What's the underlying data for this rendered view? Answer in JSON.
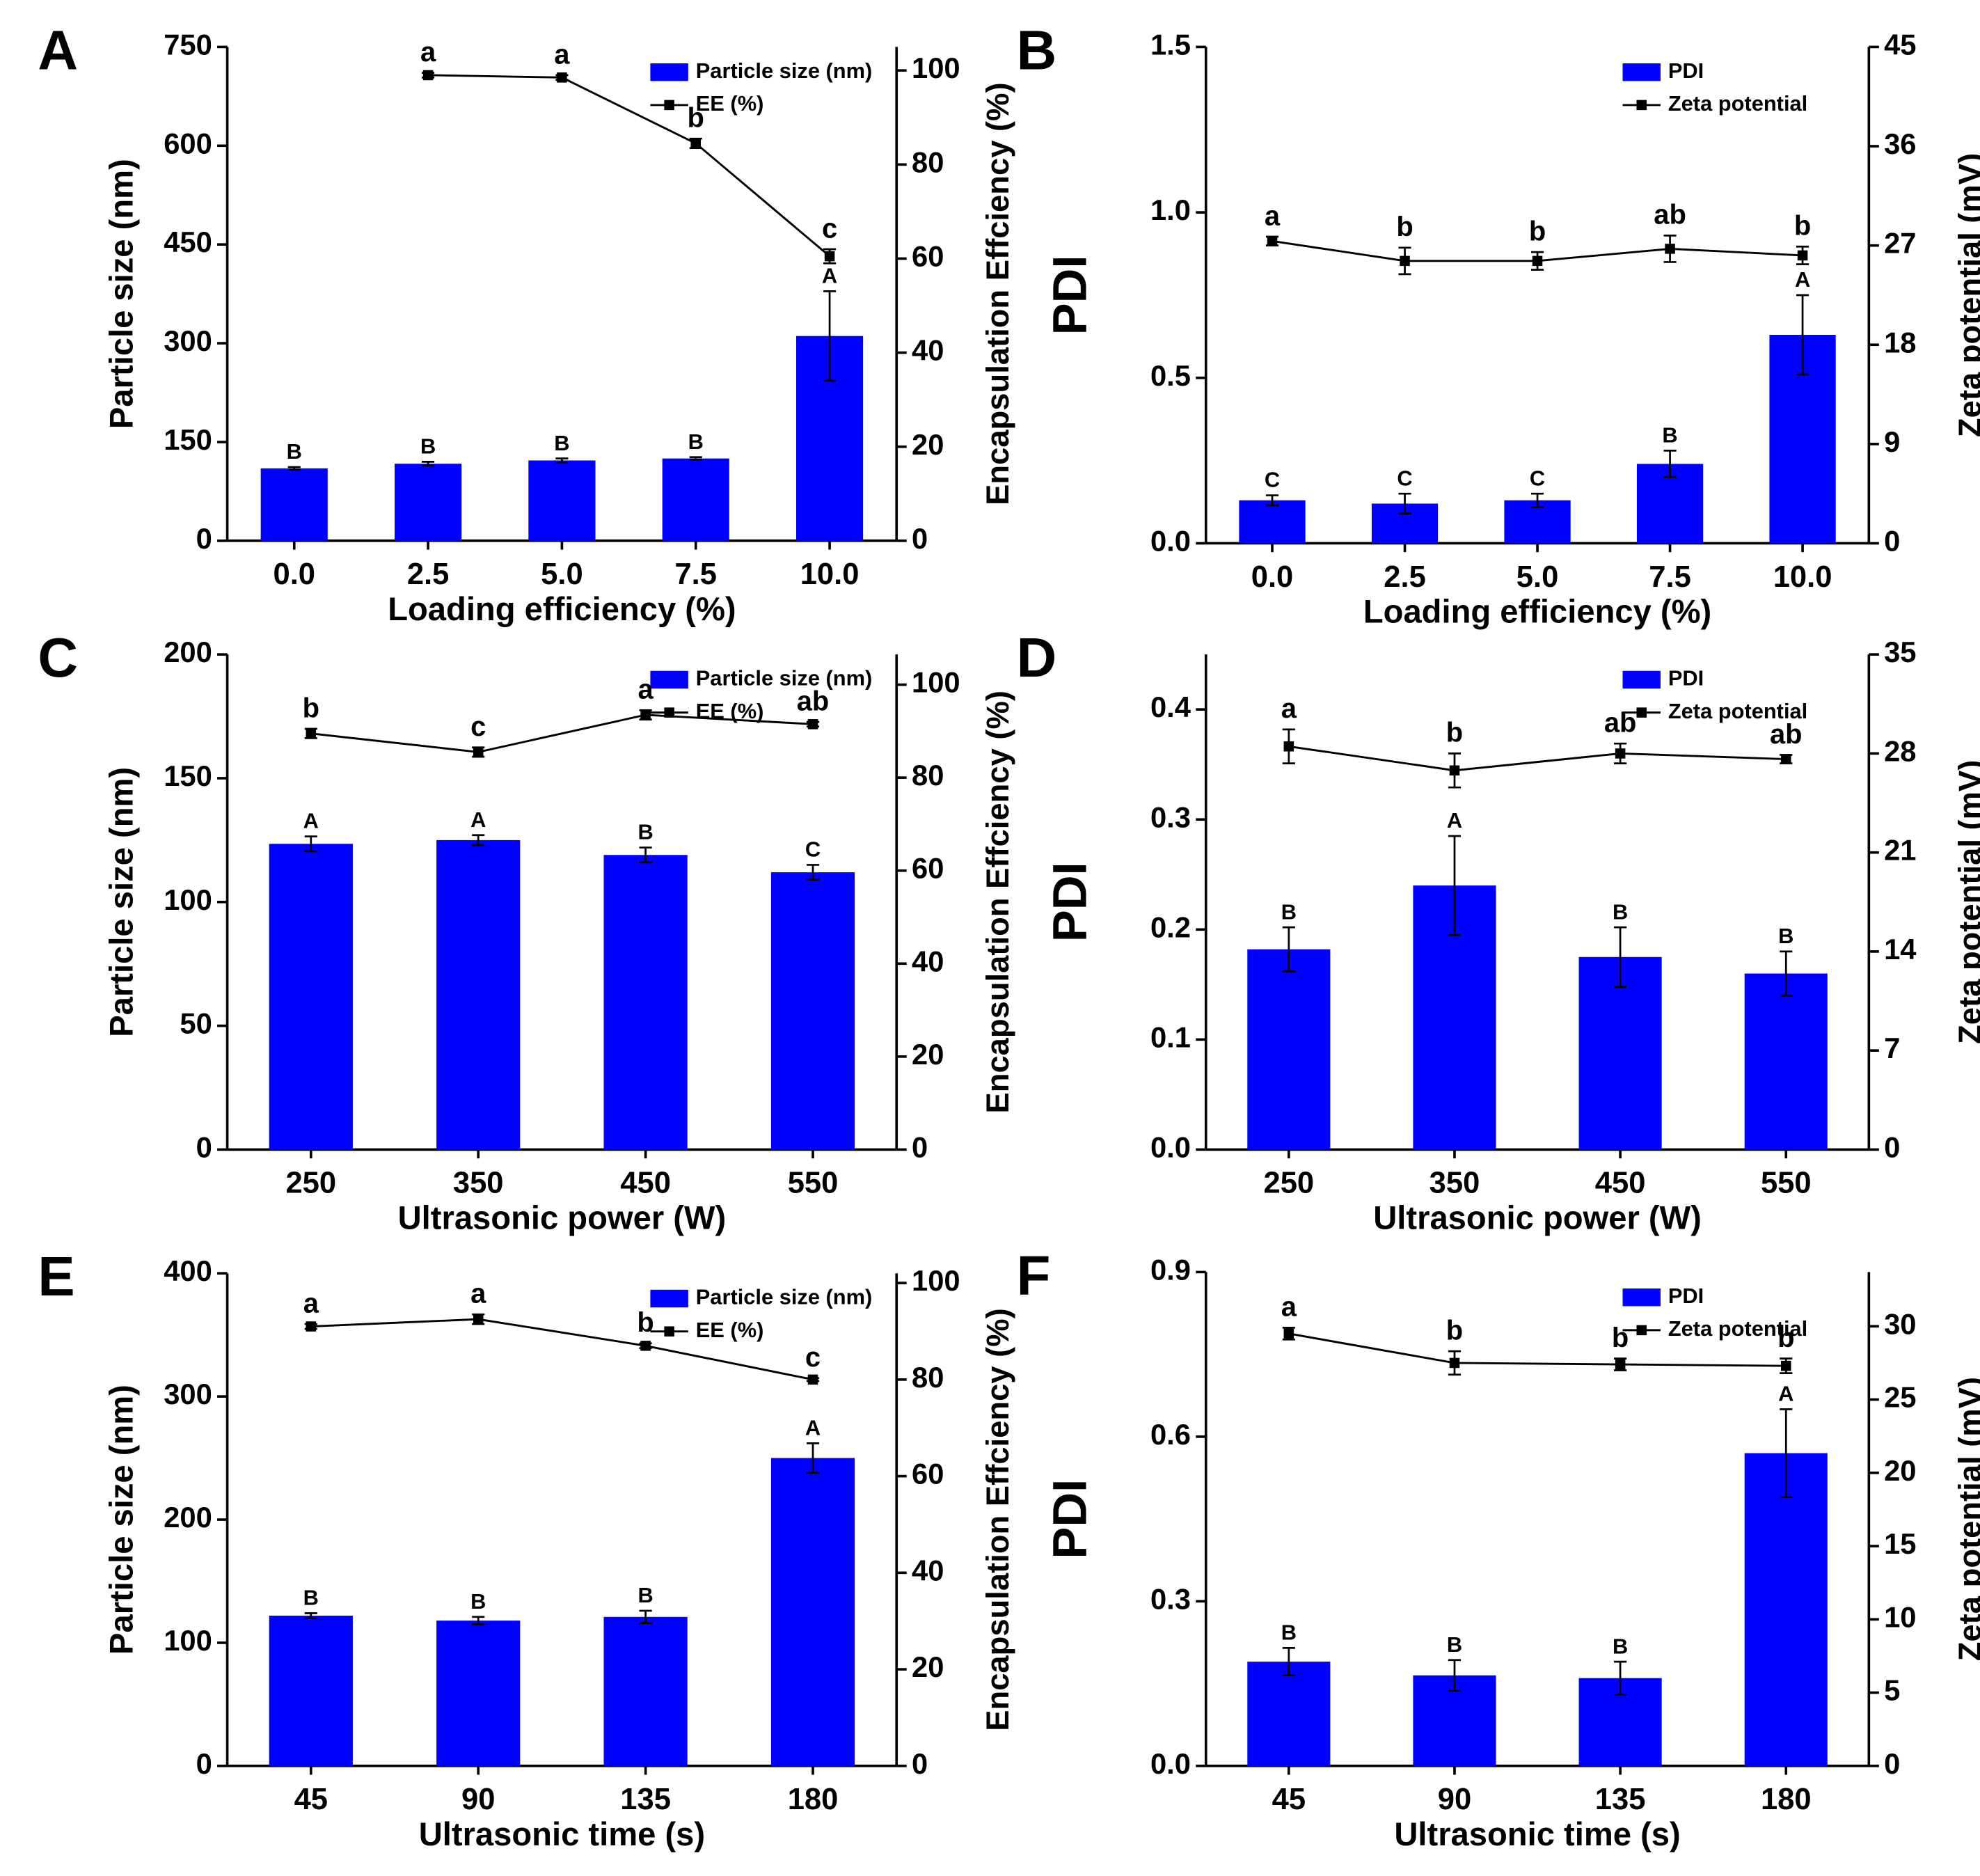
{
  "chart_data": [
    {
      "type": "bar",
      "panel": "A",
      "xlabel": "Loading efficiency (%)",
      "ylabel": "Particle size (nm)",
      "y2label": "Encapsulation Effciency (%)",
      "categories": [
        "0.0",
        "2.5",
        "5.0",
        "7.5",
        "10.0"
      ],
      "series": [
        {
          "name": "Particle size (nm)",
          "color": "#0000ff",
          "values": [
            110,
            117,
            122,
            125,
            311
          ],
          "errors": [
            2,
            3,
            3,
            2,
            68
          ],
          "letters": [
            "B",
            "B",
            "B",
            "B",
            "A"
          ]
        },
        {
          "name": "EE (%)",
          "color": "#000000",
          "axis": "y2",
          "type": "line",
          "values": [
            null,
            99,
            98.5,
            84.5,
            60.5
          ],
          "errors": [
            null,
            0.5,
            0.5,
            1,
            1.5
          ],
          "letters": [
            null,
            "a",
            "a",
            "b",
            "c"
          ]
        }
      ],
      "ylim": [
        0,
        750
      ],
      "yticks": [
        0,
        150,
        300,
        450,
        600,
        750
      ],
      "y2lim": [
        0,
        105
      ],
      "y2ticks": [
        0,
        20,
        40,
        60,
        80,
        100
      ],
      "legend": "upper right"
    },
    {
      "type": "bar",
      "panel": "B",
      "xlabel": "Loading efficiency (%)",
      "ylabel": "PDI",
      "y2label": "Zeta potential (mV)",
      "categories": [
        "0.0",
        "2.5",
        "5.0",
        "7.5",
        "10.0"
      ],
      "series": [
        {
          "name": "PDI",
          "color": "#0000ff",
          "values": [
            0.13,
            0.12,
            0.13,
            0.24,
            0.63
          ],
          "errors": [
            0.015,
            0.03,
            0.02,
            0.04,
            0.12
          ],
          "letters": [
            "C",
            "C",
            "C",
            "B",
            "A"
          ]
        },
        {
          "name": "Zeta potential",
          "color": "#000000",
          "axis": "y2",
          "type": "line",
          "values": [
            27.4,
            25.6,
            25.6,
            26.7,
            26.1
          ],
          "errors": [
            0.4,
            1.2,
            0.8,
            1.2,
            0.8
          ],
          "letters": [
            "a",
            "b",
            "b",
            "ab",
            "b"
          ]
        }
      ],
      "ylim": [
        0,
        1.5
      ],
      "yticks": [
        {
          "value": 0,
          "label": "0.0"
        },
        {
          "value": 0.5,
          "label": "0.5"
        },
        {
          "value": 1,
          "label": "1.0"
        },
        {
          "value": 1.5,
          "label": "1.5"
        }
      ],
      "y2lim": [
        0,
        45
      ],
      "y2ticks": [
        0,
        9,
        18,
        27,
        36,
        45
      ],
      "legend": "upper right"
    },
    {
      "type": "bar",
      "panel": "C",
      "xlabel": "Ultrasonic power (W)",
      "ylabel": "Particle size (nm)",
      "y2label": "Encapsulation Effciency (%)",
      "categories": [
        "250",
        "350",
        "450",
        "550"
      ],
      "series": [
        {
          "name": "Particle size (nm)",
          "color": "#0000ff",
          "values": [
            123.5,
            125,
            119,
            112
          ],
          "errors": [
            3,
            2,
            3,
            3
          ],
          "letters": [
            "A",
            "A",
            "B",
            "C"
          ]
        },
        {
          "name": "EE (%)",
          "color": "#000000",
          "axis": "y2",
          "type": "line",
          "values": [
            89.5,
            85.5,
            93.5,
            91.5
          ],
          "errors": [
            1,
            1,
            1,
            0.5
          ],
          "letters": [
            "b",
            "c",
            "a",
            "ab"
          ]
        }
      ],
      "ylim": [
        0,
        200
      ],
      "yticks": [
        0,
        50,
        100,
        150,
        200
      ],
      "y2lim": [
        0,
        106.5
      ],
      "y2ticks": [
        0,
        20,
        40,
        60,
        80,
        100
      ],
      "legend": "upper right"
    },
    {
      "type": "bar",
      "panel": "D",
      "xlabel": "Ultrasonic power (W)",
      "ylabel": "PDI",
      "y2label": "Zeta potential (mV)",
      "categories": [
        "250",
        "350",
        "450",
        "550"
      ],
      "series": [
        {
          "name": "PDI",
          "color": "#0000ff",
          "values": [
            0.182,
            0.24,
            0.175,
            0.16
          ],
          "errors": [
            0.02,
            0.045,
            0.027,
            0.02
          ],
          "letters": [
            "B",
            "A",
            "B",
            "B"
          ]
        },
        {
          "name": "Zeta potential",
          "color": "#000000",
          "axis": "y2",
          "type": "line",
          "values": [
            28.5,
            26.8,
            28.0,
            27.6
          ],
          "errors": [
            1.2,
            1.2,
            0.7,
            0.3
          ],
          "letters": [
            "a",
            "b",
            "ab",
            "ab"
          ]
        }
      ],
      "ylim": [
        0,
        0.45
      ],
      "yticks": [
        {
          "value": 0,
          "label": "0.0"
        },
        0.1,
        0.2,
        0.3,
        0.4
      ],
      "y2lim": [
        0,
        35
      ],
      "y2ticks": [
        0,
        7,
        14,
        21,
        28,
        35
      ],
      "legend": "upper right"
    },
    {
      "type": "bar",
      "panel": "E",
      "xlabel": "Ultrasonic time (s)",
      "ylabel": "Particle size (nm)",
      "y2label": "Encapsulation Effciency (%)",
      "categories": [
        "45",
        "90",
        "135",
        "180"
      ],
      "series": [
        {
          "name": "Particle size (nm)",
          "color": "#0000ff",
          "values": [
            122,
            118,
            121,
            250
          ],
          "errors": [
            2,
            3,
            5,
            12
          ],
          "letters": [
            "B",
            "B",
            "B",
            "A"
          ]
        },
        {
          "name": "EE (%)",
          "color": "#000000",
          "axis": "y2",
          "type": "line",
          "values": [
            91,
            92.5,
            87,
            80
          ],
          "errors": [
            0.5,
            1,
            0.5,
            0.3
          ],
          "letters": [
            "a",
            "a",
            "b",
            "c"
          ]
        }
      ],
      "ylim": [
        0,
        400
      ],
      "yticks": [
        0,
        100,
        200,
        300,
        400
      ],
      "y2lim": [
        0,
        102
      ],
      "y2ticks": [
        0,
        20,
        40,
        60,
        80,
        100
      ],
      "legend": "upper right"
    },
    {
      "type": "bar",
      "panel": "F",
      "xlabel": "Ultrasonic time (s)",
      "ylabel": "PDI",
      "y2label": "Zeta potential (mV)",
      "categories": [
        "45",
        "90",
        "135",
        "180"
      ],
      "series": [
        {
          "name": "PDI",
          "color": "#0000ff",
          "values": [
            0.19,
            0.165,
            0.16,
            0.57
          ],
          "errors": [
            0.025,
            0.028,
            0.03,
            0.08
          ],
          "letters": [
            "B",
            "B",
            "B",
            "A"
          ]
        },
        {
          "name": "Zeta potential",
          "color": "#000000",
          "axis": "y2",
          "type": "line",
          "values": [
            29.5,
            27.5,
            27.4,
            27.3
          ],
          "errors": [
            0.4,
            0.8,
            0.4,
            0.5
          ],
          "letters": [
            "a",
            "b",
            "b",
            "b"
          ]
        }
      ],
      "ylim": [
        0,
        0.9
      ],
      "yticks": [
        {
          "value": 0,
          "label": "0.0"
        },
        0.3,
        0.6,
        0.9
      ],
      "y2lim": [
        0,
        33.7
      ],
      "y2ticks": [
        0,
        5,
        10,
        15,
        20,
        25,
        30
      ],
      "legend": "upper right"
    }
  ]
}
